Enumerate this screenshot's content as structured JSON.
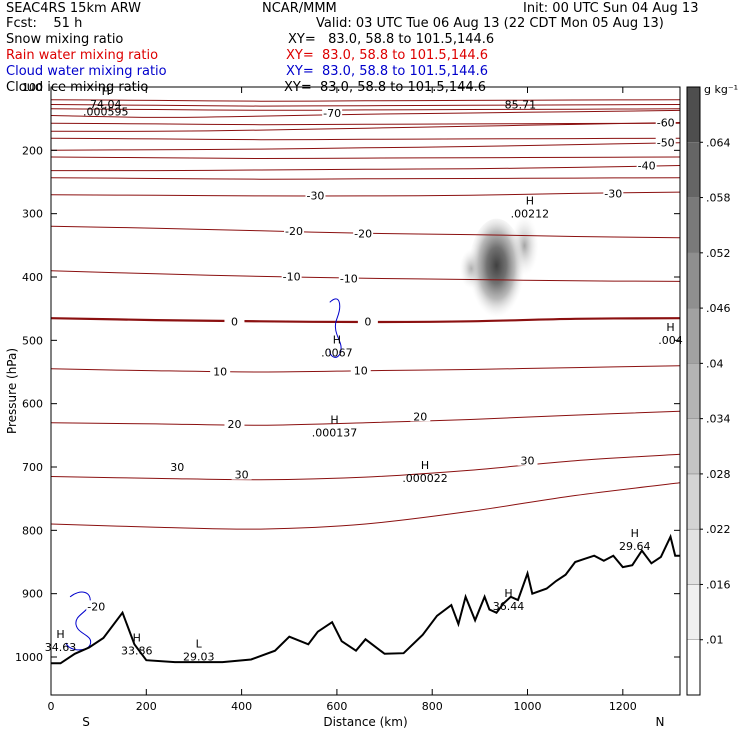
{
  "header": {
    "line1_left": "SEAC4RS 15km ARW",
    "line1_mid": "NCAR/MMM",
    "line1_right": "Init: 00 UTC Sun 04 Aug 13",
    "line2_left": "Fcst:    51 h",
    "line2_right": "Valid: 03 UTC Tue 06 Aug 13 (22 CDT Mon 05 Aug 13)",
    "fields": [
      {
        "name": "Snow mixing ratio",
        "xy": "XY=   83.0, 58.8 to 101.5,144.6",
        "color": "#000000"
      },
      {
        "name": "Rain water mixing ratio",
        "xy": "XY=  83.0, 58.8 to 101.5,144.6",
        "color": "#dd0000"
      },
      {
        "name": "Cloud water mixing ratio",
        "xy": "XY=  83.0, 58.8 to 101.5,144.6",
        "color": "#0000cc"
      },
      {
        "name": "Cloud ice mixing ratio",
        "xy": "XY=  83.0, 58.8 to 101.5,144.6",
        "color": "#000000"
      }
    ]
  },
  "chart_data": {
    "type": "cross-section",
    "xlabel": "Distance (km)",
    "ylabel": "Pressure (hPa)",
    "x_ticks": [
      "0",
      "200",
      "400",
      "600",
      "800",
      "1000",
      "1200"
    ],
    "y_ticks": [
      "100",
      "200",
      "300",
      "400",
      "500",
      "600",
      "700",
      "800",
      "900",
      "1000"
    ],
    "xlim": [
      0,
      1320
    ],
    "ylim_hPa": [
      1060,
      100
    ],
    "endpoint_labels": {
      "left": "S",
      "right": "N"
    },
    "colorbar": {
      "unit": "g kg⁻¹",
      "ticks": [
        ".01",
        ".016",
        ".022",
        ".028",
        ".034",
        ".04",
        ".046",
        ".052",
        ".058",
        ".064"
      ],
      "colors": [
        "#ffffff",
        "#f0f0f0",
        "#e2e2e2",
        "#d4d4d4",
        "#c4c4c4",
        "#b4b4b4",
        "#a2a2a2",
        "#8f8f8f",
        "#7a7a7a",
        "#656565",
        "#4e4e4e"
      ]
    },
    "temperature_contours": [
      {
        "level": -70,
        "p": [
          145,
          148,
          146,
          143,
          141,
          139,
          137
        ]
      },
      {
        "level": -60,
        "p": [
          170,
          170,
          168,
          165,
          162,
          159,
          156
        ]
      },
      {
        "level": -50,
        "p": [
          200,
          199,
          198,
          196,
          194,
          191,
          188
        ]
      },
      {
        "level": -40,
        "p": [
          232,
          232,
          231,
          230,
          229,
          227,
          224
        ]
      },
      {
        "level": -30,
        "p": [
          270,
          271,
          272,
          272,
          271,
          268,
          266
        ]
      },
      {
        "level": -20,
        "p": [
          320,
          323,
          327,
          331,
          333,
          336,
          338
        ]
      },
      {
        "level": -10,
        "p": [
          390,
          395,
          399,
          402,
          404,
          406,
          407
        ]
      },
      {
        "level": 0,
        "p": [
          465,
          468,
          470,
          471,
          470,
          466,
          465
        ],
        "bold": true
      },
      {
        "level": 10,
        "p": [
          545,
          548,
          550,
          548,
          546,
          543,
          540
        ]
      },
      {
        "level": 20,
        "p": [
          630,
          632,
          634,
          630,
          625,
          618,
          612
        ]
      },
      {
        "level": 30,
        "p": [
          715,
          718,
          720,
          716,
          705,
          690,
          680
        ]
      },
      {
        "level": 40,
        "p": [
          790,
          795,
          798,
          790,
          770,
          745,
          725
        ]
      }
    ],
    "contour_line_labels": [
      {
        "text": "-70",
        "x": 590,
        "p": 141
      },
      {
        "text": "-60",
        "x": 1290,
        "p": 156
      },
      {
        "text": "-50",
        "x": 1290,
        "p": 188
      },
      {
        "text": "-40",
        "x": 1250,
        "p": 224
      },
      {
        "text": "-30",
        "x": 555,
        "p": 271
      },
      {
        "text": "-30",
        "x": 1180,
        "p": 268
      },
      {
        "text": "-20",
        "x": 510,
        "p": 327
      },
      {
        "text": "-20",
        "x": 655,
        "p": 331
      },
      {
        "text": "-10",
        "x": 505,
        "p": 399
      },
      {
        "text": "-10",
        "x": 625,
        "p": 402
      },
      {
        "text": "0",
        "x": 385,
        "p": 470
      },
      {
        "text": "0",
        "x": 665,
        "p": 470
      },
      {
        "text": "10",
        "x": 355,
        "p": 549
      },
      {
        "text": "10",
        "x": 650,
        "p": 548
      },
      {
        "text": "20",
        "x": 385,
        "p": 632
      },
      {
        "text": "20",
        "x": 775,
        "p": 620
      },
      {
        "text": "30",
        "x": 265,
        "p": 700
      },
      {
        "text": "30",
        "x": 400,
        "p": 712
      },
      {
        "text": "30",
        "x": 1000,
        "p": 690
      },
      {
        "text": "-20",
        "x": 95,
        "p": 920
      }
    ],
    "extrema_labels": [
      {
        "mark": "H",
        "value": "74.04",
        "x": 115,
        "p": 117,
        "color": "#8b0000"
      },
      {
        "mark": "",
        "value": ".000595",
        "x": 115,
        "p": 129,
        "color": "#000000"
      },
      {
        "mark": "",
        "value": "85.71",
        "x": 985,
        "p": 118,
        "color": "#8b0000"
      },
      {
        "mark": "H",
        "value": ".00212",
        "x": 1005,
        "p": 290,
        "color": "#000000"
      },
      {
        "mark": "H",
        "value": ".0067",
        "x": 600,
        "p": 510,
        "color": "#0000cc"
      },
      {
        "mark": "H",
        "value": ".004",
        "x": 1300,
        "p": 490,
        "color": "#0000cc"
      },
      {
        "mark": "H",
        "value": ".000137",
        "x": 595,
        "p": 636,
        "color": "#cc0000"
      },
      {
        "mark": "H",
        "value": ".000022",
        "x": 785,
        "p": 708,
        "color": "#cc0000"
      },
      {
        "mark": "H",
        "value": "29.64",
        "x": 1225,
        "p": 815,
        "color": "#8b0000"
      },
      {
        "mark": "H",
        "value": "36.44",
        "x": 960,
        "p": 910,
        "color": "#8b0000"
      },
      {
        "mark": "H",
        "value": "33.86",
        "x": 180,
        "p": 980,
        "color": "#8b0000"
      },
      {
        "mark": "L",
        "value": "29.03",
        "x": 310,
        "p": 990,
        "color": "#8b0000"
      },
      {
        "mark": "H",
        "value": "34.63",
        "x": 20,
        "p": 975,
        "color": "#0000cc"
      }
    ],
    "terrain": {
      "x": [
        0,
        20,
        50,
        80,
        110,
        150,
        175,
        200,
        260,
        300,
        360,
        420,
        470,
        500,
        540,
        560,
        590,
        610,
        640,
        660,
        700,
        740,
        780,
        810,
        840,
        855,
        870,
        890,
        910,
        920,
        935,
        950,
        965,
        980,
        1000,
        1010,
        1040,
        1060,
        1080,
        1100,
        1120,
        1140,
        1160,
        1180,
        1200,
        1220,
        1240,
        1260,
        1280,
        1300,
        1310,
        1320
      ],
      "p": [
        1010,
        1010,
        995,
        985,
        970,
        930,
        980,
        1005,
        1008,
        1008,
        1008,
        1004,
        990,
        968,
        980,
        960,
        945,
        975,
        990,
        972,
        995,
        994,
        965,
        935,
        918,
        948,
        905,
        942,
        905,
        925,
        930,
        915,
        905,
        910,
        868,
        900,
        892,
        880,
        870,
        850,
        845,
        840,
        848,
        840,
        858,
        855,
        832,
        852,
        842,
        810,
        840,
        840
      ]
    },
    "snow_maximum": {
      "x": 935,
      "p": 390,
      "value_gkg": 0.064
    }
  }
}
